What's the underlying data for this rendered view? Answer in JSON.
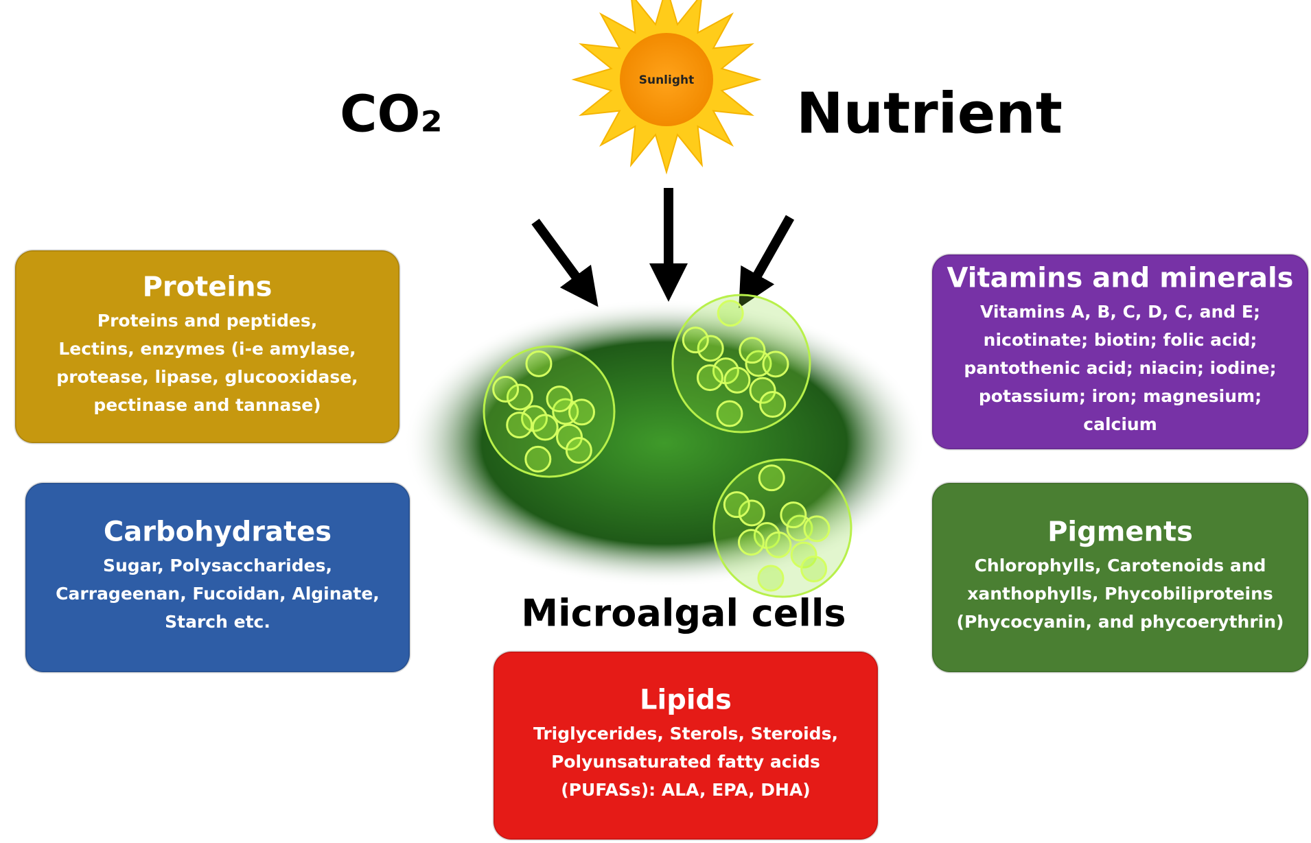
{
  "inputs": {
    "sunlight": "Sunlight",
    "co2": "CO₂",
    "nutrient": "Nutrient"
  },
  "center": {
    "label": "Microalgal cells"
  },
  "boxes": [
    {
      "title": "Proteins",
      "lines": [
        "Proteins and peptides,",
        "Lectins, enzymes (i-e amylase,",
        "protease, lipase, glucooxidase,",
        "pectinase and tannase)"
      ]
    },
    {
      "title": "Carbohydrates",
      "lines": [
        "Sugar, Polysaccharides,",
        "Carrageenan, Fucoidan,  Alginate,",
        "Starch etc."
      ]
    },
    {
      "title": "Lipids",
      "lines": [
        "Triglycerides, Sterols, Steroids,",
        "Polyunsaturated fatty acids",
        "(PUFASs): ALA, EPA, DHA)"
      ]
    },
    {
      "title": "Vitamins and minerals",
      "lines": [
        "Vitamins A, B, C, D, C, and E;",
        "nicotinate; biotin; folic acid;",
        "pantothenic acid; niacin; iodine;",
        "potassium; iron; magnesium;",
        "calcium"
      ]
    },
    {
      "title": "Pigments",
      "lines": [
        "Chlorophylls, Carotenoids and",
        "xanthophylls, Phycobiliproteins",
        "(Phycocyanin, and phycoerythrin)"
      ]
    }
  ]
}
